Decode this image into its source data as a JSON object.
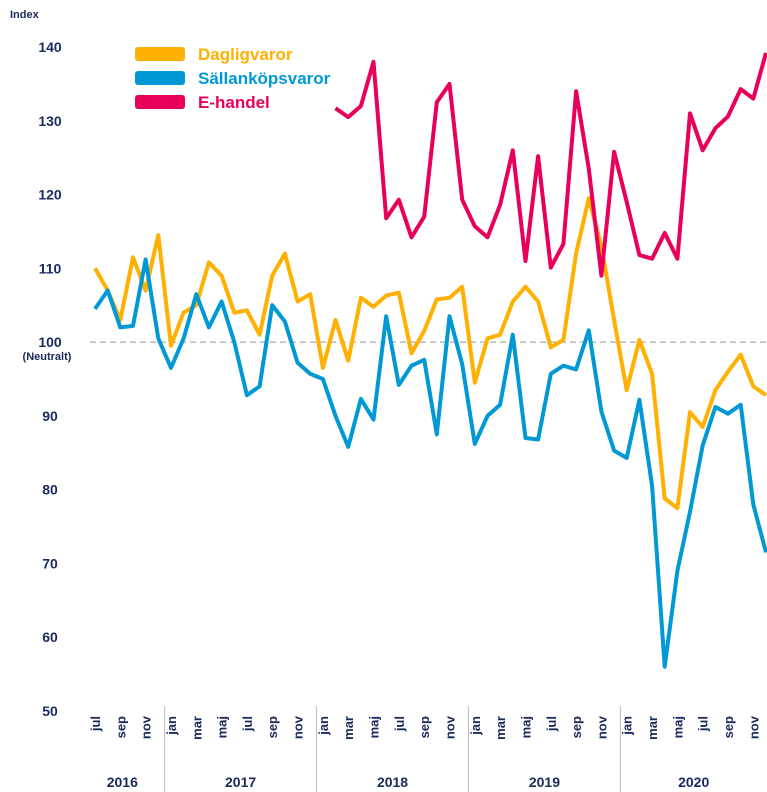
{
  "chart_data": {
    "type": "line",
    "y_axis_label": "Index",
    "categories": [
      "jul",
      null,
      "sep",
      null,
      "nov",
      null,
      "jan",
      null,
      "mar",
      null,
      "maj",
      null,
      "jul",
      null,
      "sep",
      null,
      "nov",
      null,
      "jan",
      null,
      "mar",
      null,
      "maj",
      null,
      "jul",
      null,
      "sep",
      null,
      "nov",
      null,
      "jan",
      null,
      "mar",
      null,
      "maj",
      null,
      "jul",
      null,
      "sep",
      null,
      "nov",
      null,
      "jan",
      null,
      "mar",
      null,
      "maj",
      null,
      "jul",
      null,
      "sep",
      null,
      "nov",
      null
    ],
    "x_groups": [
      {
        "label": "2016",
        "count": 6
      },
      {
        "label": "2017",
        "count": 12
      },
      {
        "label": "2018",
        "count": 12
      },
      {
        "label": "2019",
        "count": 12
      },
      {
        "label": "2020",
        "count": 12
      }
    ],
    "ylim": [
      50,
      140
    ],
    "yticks": [
      50,
      60,
      70,
      80,
      90,
      100,
      110,
      120,
      130,
      140
    ],
    "reference_line": {
      "value": 100,
      "label": "(Neutralt)"
    },
    "series": [
      {
        "name": "Dagligvaror",
        "color": "#ffb000",
        "values": [
          110,
          107,
          103,
          111.5,
          107,
          114.5,
          99.5,
          104,
          105,
          110.8,
          109,
          104,
          104.3,
          101,
          109,
          112,
          105.5,
          106.5,
          96.5,
          103,
          97.5,
          106,
          104.8,
          106.3,
          106.7,
          98.5,
          101.5,
          105.8,
          106,
          107.5,
          94.5,
          100.5,
          101,
          105.5,
          107.5,
          105.5,
          99.3,
          100.3,
          112,
          119.5,
          113,
          103,
          93.5,
          100.3,
          95.7,
          78.8,
          77.5,
          90.5,
          88.5,
          93.5,
          96,
          98.3,
          94,
          92.8
        ]
      },
      {
        "name": "Sällanköpsvaror",
        "color": "#0099d6",
        "values": [
          104.5,
          107,
          102,
          102.2,
          111.2,
          100.5,
          96.5,
          100.5,
          106.5,
          102,
          105.5,
          100,
          92.8,
          94,
          105,
          102.8,
          97.2,
          95.7,
          95,
          90,
          85.8,
          92.3,
          89.5,
          103.5,
          94.2,
          96.8,
          97.6,
          87.5,
          103.5,
          97,
          86.2,
          90,
          91.5,
          101,
          87,
          86.8,
          95.7,
          96.8,
          96.3,
          101.6,
          90.6,
          85.3,
          84.3,
          92.2,
          80.5,
          56,
          69,
          77,
          86,
          91.2,
          90.3,
          91.5,
          78,
          71.5
        ]
      },
      {
        "name": "E-handel",
        "color": "#e8005a",
        "values": [
          null,
          null,
          null,
          null,
          null,
          null,
          null,
          null,
          null,
          null,
          null,
          null,
          null,
          null,
          null,
          null,
          null,
          null,
          null,
          131.7,
          130.5,
          132,
          138,
          116.8,
          119.3,
          114.2,
          117,
          132.5,
          135,
          119.3,
          115.7,
          114.2,
          118.6,
          126,
          111,
          125.2,
          110.1,
          113.3,
          134,
          123.5,
          109,
          125.8,
          119,
          111.8,
          111.3,
          114.8,
          111.3,
          131,
          126,
          129,
          130.6,
          134.3,
          133,
          139.2
        ]
      }
    ]
  }
}
